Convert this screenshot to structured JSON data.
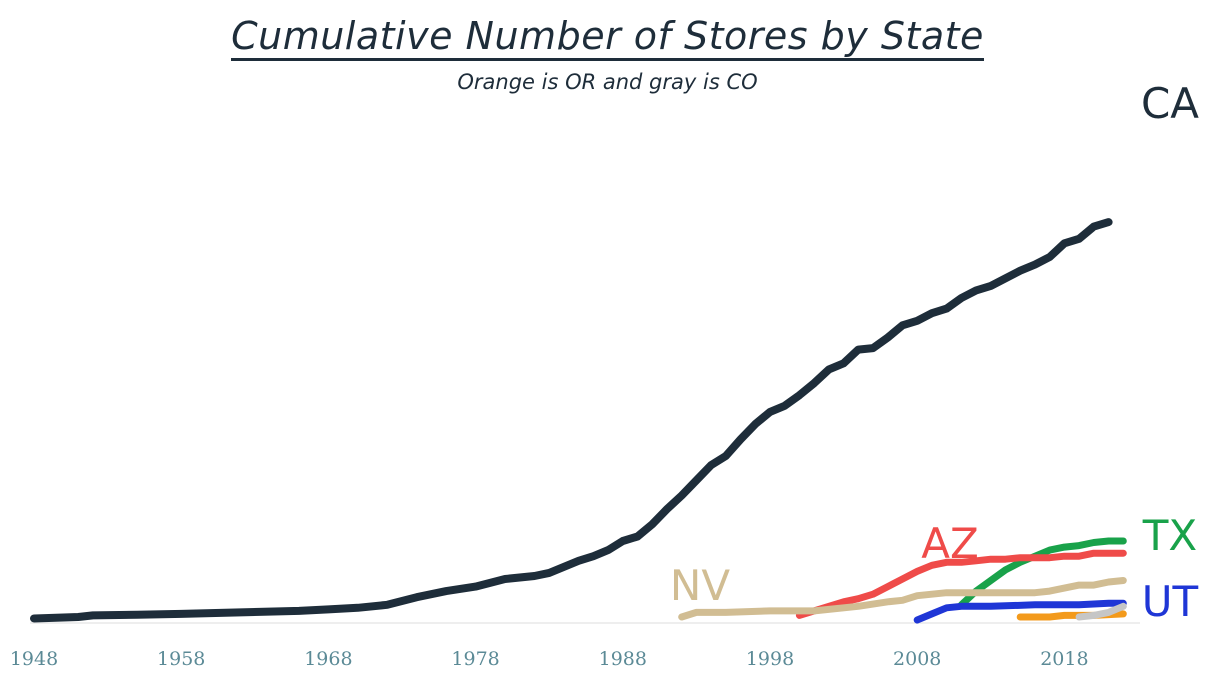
{
  "chart_data": {
    "type": "line",
    "title": "Cumulative Number of Stores by State",
    "subtitle": "Orange is OR and gray is CO",
    "xlabel": "",
    "ylabel": "",
    "xlim": [
      1948,
      2023
    ],
    "ylim": [
      0,
      345
    ],
    "x_ticks": [
      "1948",
      "1958",
      "1968",
      "1978",
      "1988",
      "1998",
      "2008",
      "2018"
    ],
    "grid": false,
    "legend": "direct labels at line ends",
    "series": [
      {
        "name": "CA",
        "label": "CA",
        "color": "#1e2d3a",
        "points": [
          [
            1948,
            1
          ],
          [
            1951,
            2
          ],
          [
            1952,
            3
          ],
          [
            1955,
            3.5
          ],
          [
            1958,
            4
          ],
          [
            1962,
            5
          ],
          [
            1966,
            6
          ],
          [
            1968,
            7
          ],
          [
            1970,
            8
          ],
          [
            1972,
            10
          ],
          [
            1974,
            15
          ],
          [
            1976,
            19
          ],
          [
            1978,
            22
          ],
          [
            1980,
            27
          ],
          [
            1982,
            29
          ],
          [
            1983,
            31
          ],
          [
            1985,
            39
          ],
          [
            1986,
            42
          ],
          [
            1987,
            46
          ],
          [
            1988,
            52
          ],
          [
            1989,
            55
          ],
          [
            1990,
            63
          ],
          [
            1991,
            73
          ],
          [
            1992,
            82
          ],
          [
            1993,
            92
          ],
          [
            1994,
            102
          ],
          [
            1995,
            108
          ],
          [
            1996,
            119
          ],
          [
            1997,
            129
          ],
          [
            1998,
            137
          ],
          [
            1999,
            141
          ],
          [
            2000,
            148
          ],
          [
            2001,
            156
          ],
          [
            2002,
            165
          ],
          [
            2003,
            169
          ],
          [
            2004,
            178
          ],
          [
            2005,
            179
          ],
          [
            2006,
            186
          ],
          [
            2007,
            194
          ],
          [
            2008,
            197
          ],
          [
            2009,
            202
          ],
          [
            2010,
            205
          ],
          [
            2011,
            212
          ],
          [
            2012,
            217
          ],
          [
            2013,
            220
          ],
          [
            2014,
            225
          ],
          [
            2015,
            230
          ],
          [
            2016,
            234
          ],
          [
            2017,
            239
          ],
          [
            2018,
            248
          ],
          [
            2019,
            251
          ],
          [
            2020,
            259
          ],
          [
            2021,
            262
          ]
        ]
      },
      {
        "name": "TX",
        "label": "TX",
        "color": "#19a24a",
        "points": [
          [
            2011,
            10
          ],
          [
            2012,
            19
          ],
          [
            2013,
            26
          ],
          [
            2014,
            33
          ],
          [
            2015,
            38
          ],
          [
            2016,
            42
          ],
          [
            2017,
            46
          ],
          [
            2018,
            48
          ],
          [
            2019,
            49
          ],
          [
            2020,
            51
          ],
          [
            2021,
            52
          ],
          [
            2022,
            52
          ]
        ]
      },
      {
        "name": "AZ",
        "label": "AZ",
        "color": "#ef4b49",
        "points": [
          [
            2000,
            3
          ],
          [
            2001,
            6
          ],
          [
            2002,
            9
          ],
          [
            2003,
            12
          ],
          [
            2004,
            14
          ],
          [
            2005,
            17
          ],
          [
            2006,
            22
          ],
          [
            2007,
            27
          ],
          [
            2008,
            32
          ],
          [
            2009,
            36
          ],
          [
            2010,
            38
          ],
          [
            2011,
            38
          ],
          [
            2012,
            39
          ],
          [
            2013,
            40
          ],
          [
            2014,
            40
          ],
          [
            2015,
            41
          ],
          [
            2016,
            41
          ],
          [
            2017,
            41
          ],
          [
            2018,
            42
          ],
          [
            2019,
            42
          ],
          [
            2020,
            44
          ],
          [
            2021,
            44
          ],
          [
            2022,
            44
          ]
        ]
      },
      {
        "name": "NV",
        "label": "NV",
        "color": "#d1bd93",
        "points": [
          [
            1992,
            2
          ],
          [
            1993,
            5
          ],
          [
            1995,
            5
          ],
          [
            1998,
            6
          ],
          [
            2001,
            6
          ],
          [
            2004,
            9
          ],
          [
            2006,
            12
          ],
          [
            2007,
            13
          ],
          [
            2008,
            16
          ],
          [
            2010,
            18
          ],
          [
            2014,
            18
          ],
          [
            2016,
            18
          ],
          [
            2017,
            19
          ],
          [
            2018,
            21
          ],
          [
            2019,
            23
          ],
          [
            2020,
            23
          ],
          [
            2021,
            25
          ],
          [
            2022,
            26
          ]
        ]
      },
      {
        "name": "UT",
        "label": "UT",
        "color": "#1f36d6",
        "points": [
          [
            2008,
            0
          ],
          [
            2009,
            4
          ],
          [
            2010,
            8
          ],
          [
            2011,
            9
          ],
          [
            2013,
            9
          ],
          [
            2016,
            10
          ],
          [
            2019,
            10
          ],
          [
            2021,
            11
          ],
          [
            2022,
            11
          ]
        ]
      },
      {
        "name": "OR",
        "label": "",
        "color": "#f39a1b",
        "points": [
          [
            2015,
            2
          ],
          [
            2017,
            2
          ],
          [
            2018,
            3
          ],
          [
            2020,
            3
          ],
          [
            2022,
            4
          ]
        ]
      },
      {
        "name": "CO",
        "label": "",
        "color": "#c6c6c6",
        "points": [
          [
            2019,
            2
          ],
          [
            2020,
            3
          ],
          [
            2021,
            5
          ],
          [
            2022,
            9
          ]
        ]
      }
    ]
  }
}
